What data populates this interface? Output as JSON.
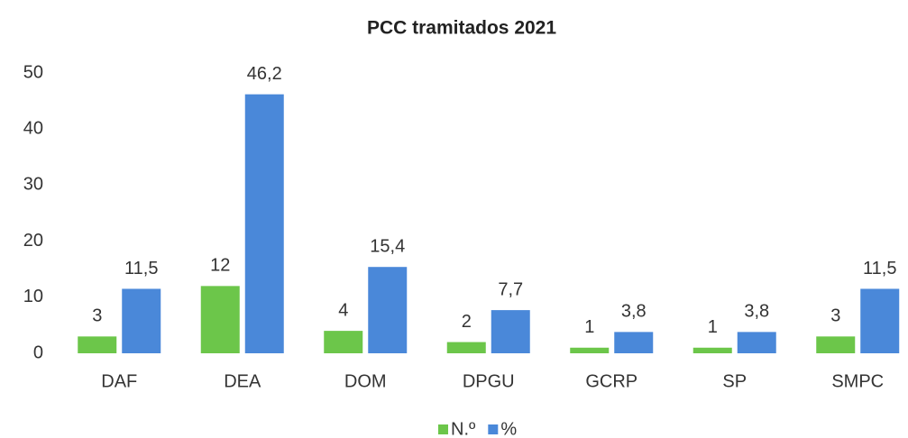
{
  "chart_data": {
    "type": "bar",
    "title": "PCC tramitados 2021",
    "categories": [
      "DAF",
      "DEA",
      "DOM",
      "DPGU",
      "GCRP",
      "SP",
      "SMPC"
    ],
    "series": [
      {
        "name": "N.º",
        "color": "#6cc64a",
        "values": [
          3,
          12,
          4,
          2,
          1,
          1,
          3
        ]
      },
      {
        "name": "%",
        "color": "#4a88d9",
        "values": [
          11.5,
          46.2,
          15.4,
          7.7,
          3.8,
          3.8,
          11.5
        ],
        "value_labels": [
          "11,5",
          "46,2",
          "15,4",
          "7,7",
          "3,8",
          "3,8",
          "11,5"
        ]
      }
    ],
    "ylim": [
      0,
      50
    ],
    "yticks": [
      0,
      10,
      20,
      30,
      40,
      50
    ],
    "grid": false,
    "legend": "bottom"
  }
}
